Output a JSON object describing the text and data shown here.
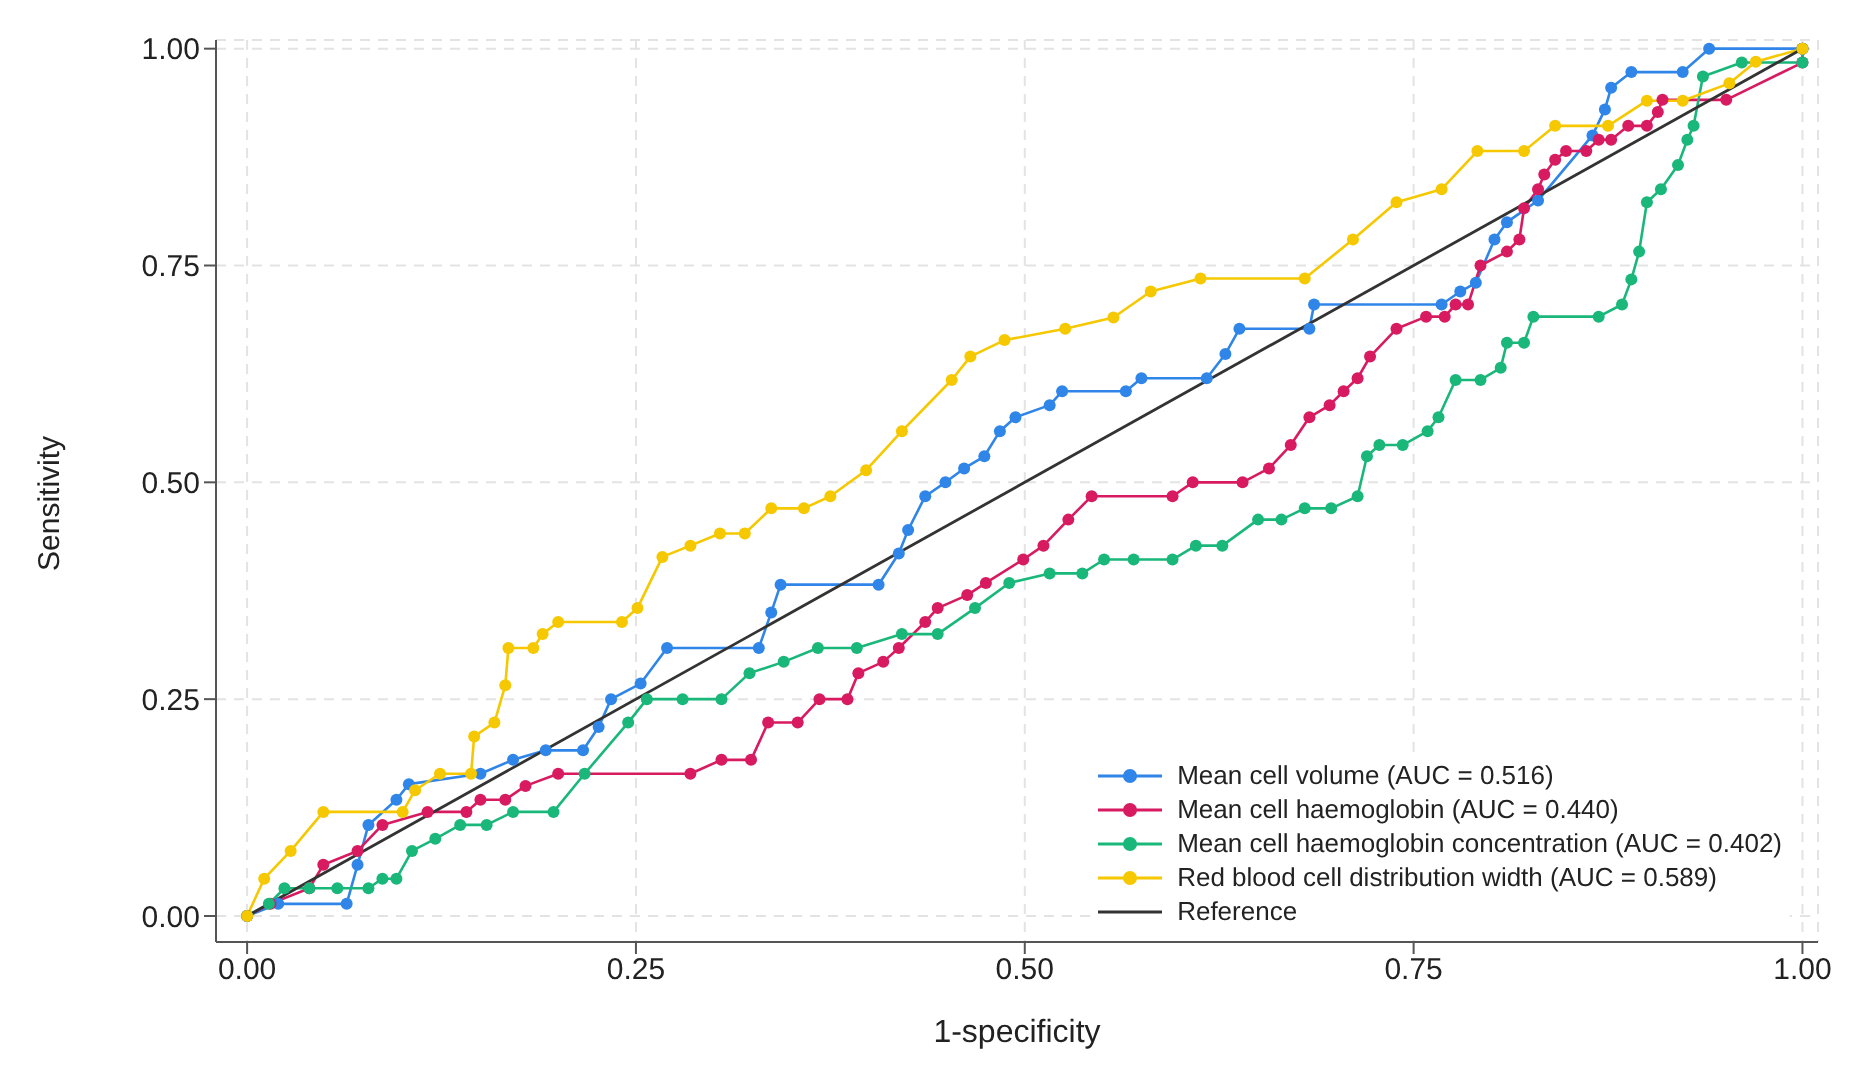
{
  "chart_data": {
    "type": "line",
    "xlabel": "1-specificity",
    "ylabel": "Sensitivity",
    "xlim": [
      -0.02,
      1.01
    ],
    "ylim": [
      -0.03,
      1.01
    ],
    "xticks": [
      {
        "value": 0,
        "label": "0.00"
      },
      {
        "value": 0.25,
        "label": "0.25"
      },
      {
        "value": 0.5,
        "label": "0.50"
      },
      {
        "value": 0.75,
        "label": "0.75"
      },
      {
        "value": 1,
        "label": "1.00"
      }
    ],
    "yticks": [
      {
        "value": 0,
        "label": "0.00"
      },
      {
        "value": 0.25,
        "label": "0.25"
      },
      {
        "value": 0.5,
        "label": "0.50"
      },
      {
        "value": 0.75,
        "label": "0.75"
      },
      {
        "value": 1,
        "label": "1.00"
      }
    ],
    "grid": true,
    "legend": "bottom right",
    "marker": "circle",
    "line_style": "solid",
    "series": [
      {
        "name": "Mean cell volume (AUC = 0.516)",
        "color": "#2f86e8",
        "x": [
          0,
          0.02,
          0.064,
          0.071,
          0.078,
          0.096,
          0.104,
          0.15,
          0.171,
          0.192,
          0.216,
          0.226,
          0.234,
          0.253,
          0.27,
          0.329,
          0.337,
          0.343,
          0.406,
          0.419,
          0.425,
          0.436,
          0.449,
          0.461,
          0.474,
          0.484,
          0.494,
          0.516,
          0.524,
          0.565,
          0.575,
          0.617,
          0.629,
          0.638,
          0.683,
          0.686,
          0.768,
          0.78,
          0.79,
          0.802,
          0.81,
          0.83,
          0.865,
          0.873,
          0.877,
          0.89,
          0.923,
          0.94,
          1
        ],
        "values": [
          0,
          0.014,
          0.014,
          0.059,
          0.105,
          0.134,
          0.152,
          0.164,
          0.18,
          0.191,
          0.191,
          0.218,
          0.25,
          0.268,
          0.309,
          0.309,
          0.35,
          0.382,
          0.382,
          0.418,
          0.445,
          0.484,
          0.5,
          0.516,
          0.53,
          0.559,
          0.575,
          0.589,
          0.605,
          0.605,
          0.62,
          0.62,
          0.648,
          0.677,
          0.677,
          0.705,
          0.705,
          0.72,
          0.73,
          0.78,
          0.8,
          0.825,
          0.9,
          0.93,
          0.955,
          0.973,
          0.973,
          1,
          1
        ]
      },
      {
        "name": "Mean cell haemoglobin (AUC = 0.440)",
        "color": "#d81b60",
        "x": [
          0,
          0.015,
          0.04,
          0.049,
          0.071,
          0.087,
          0.116,
          0.141,
          0.15,
          0.166,
          0.179,
          0.2,
          0.285,
          0.305,
          0.324,
          0.335,
          0.354,
          0.368,
          0.386,
          0.393,
          0.409,
          0.419,
          0.436,
          0.444,
          0.463,
          0.475,
          0.499,
          0.512,
          0.528,
          0.543,
          0.595,
          0.608,
          0.64,
          0.657,
          0.671,
          0.683,
          0.696,
          0.705,
          0.714,
          0.722,
          0.739,
          0.758,
          0.77,
          0.777,
          0.785,
          0.793,
          0.81,
          0.818,
          0.821,
          0.83,
          0.834,
          0.841,
          0.848,
          0.861,
          0.869,
          0.877,
          0.888,
          0.9,
          0.907,
          0.91,
          0.951,
          1,
          1
        ],
        "values": [
          0,
          0.014,
          0.032,
          0.059,
          0.075,
          0.105,
          0.12,
          0.12,
          0.134,
          0.134,
          0.15,
          0.164,
          0.164,
          0.18,
          0.18,
          0.223,
          0.223,
          0.25,
          0.25,
          0.28,
          0.293,
          0.309,
          0.339,
          0.355,
          0.37,
          0.384,
          0.411,
          0.427,
          0.457,
          0.484,
          0.484,
          0.5,
          0.5,
          0.516,
          0.543,
          0.575,
          0.589,
          0.605,
          0.62,
          0.645,
          0.677,
          0.691,
          0.691,
          0.705,
          0.705,
          0.75,
          0.766,
          0.78,
          0.816,
          0.838,
          0.855,
          0.872,
          0.882,
          0.882,
          0.895,
          0.895,
          0.911,
          0.911,
          0.927,
          0.941,
          0.941,
          0.984,
          1
        ]
      },
      {
        "name": "Mean cell haemoglobin concentration (AUC = 0.402)",
        "color": "#1ab77a",
        "x": [
          0,
          0.014,
          0.024,
          0.04,
          0.058,
          0.078,
          0.087,
          0.096,
          0.106,
          0.121,
          0.137,
          0.154,
          0.171,
          0.197,
          0.217,
          0.245,
          0.257,
          0.28,
          0.305,
          0.323,
          0.345,
          0.367,
          0.392,
          0.421,
          0.444,
          0.468,
          0.49,
          0.516,
          0.537,
          0.551,
          0.57,
          0.595,
          0.61,
          0.627,
          0.65,
          0.665,
          0.68,
          0.697,
          0.714,
          0.72,
          0.728,
          0.743,
          0.759,
          0.766,
          0.777,
          0.793,
          0.806,
          0.81,
          0.821,
          0.827,
          0.869,
          0.884,
          0.89,
          0.895,
          0.9,
          0.909,
          0.92,
          0.926,
          0.93,
          0.936,
          0.961,
          1,
          1
        ],
        "values": [
          0,
          0.014,
          0.032,
          0.032,
          0.032,
          0.032,
          0.043,
          0.043,
          0.075,
          0.089,
          0.105,
          0.105,
          0.12,
          0.12,
          0.164,
          0.223,
          0.25,
          0.25,
          0.25,
          0.28,
          0.293,
          0.309,
          0.309,
          0.325,
          0.325,
          0.355,
          0.384,
          0.395,
          0.395,
          0.411,
          0.411,
          0.411,
          0.427,
          0.427,
          0.457,
          0.457,
          0.47,
          0.47,
          0.484,
          0.53,
          0.543,
          0.543,
          0.559,
          0.575,
          0.618,
          0.618,
          0.632,
          0.661,
          0.661,
          0.691,
          0.691,
          0.705,
          0.734,
          0.766,
          0.823,
          0.838,
          0.866,
          0.895,
          0.911,
          0.968,
          0.984,
          0.984,
          1
        ]
      },
      {
        "name": "Red blood cell distribution width (AUC = 0.589)",
        "color": "#f5c800",
        "x": [
          0,
          0.011,
          0.028,
          0.049,
          0.1,
          0.108,
          0.124,
          0.144,
          0.146,
          0.159,
          0.166,
          0.168,
          0.184,
          0.19,
          0.2,
          0.241,
          0.251,
          0.267,
          0.285,
          0.304,
          0.32,
          0.337,
          0.358,
          0.375,
          0.398,
          0.421,
          0.453,
          0.465,
          0.487,
          0.526,
          0.557,
          0.581,
          0.613,
          0.68,
          0.711,
          0.739,
          0.768,
          0.791,
          0.821,
          0.841,
          0.875,
          0.9,
          0.923,
          0.953,
          0.97,
          1
        ],
        "values": [
          0,
          0.043,
          0.075,
          0.12,
          0.12,
          0.145,
          0.164,
          0.164,
          0.207,
          0.223,
          0.266,
          0.309,
          0.309,
          0.325,
          0.339,
          0.339,
          0.355,
          0.414,
          0.427,
          0.441,
          0.441,
          0.47,
          0.47,
          0.484,
          0.514,
          0.559,
          0.618,
          0.645,
          0.664,
          0.677,
          0.69,
          0.72,
          0.735,
          0.735,
          0.78,
          0.823,
          0.838,
          0.882,
          0.882,
          0.911,
          0.911,
          0.94,
          0.94,
          0.96,
          0.985,
          1
        ]
      },
      {
        "name": "Reference",
        "color": "#333333",
        "marker": "none",
        "x": [
          0,
          1
        ],
        "values": [
          0,
          1
        ]
      }
    ]
  }
}
